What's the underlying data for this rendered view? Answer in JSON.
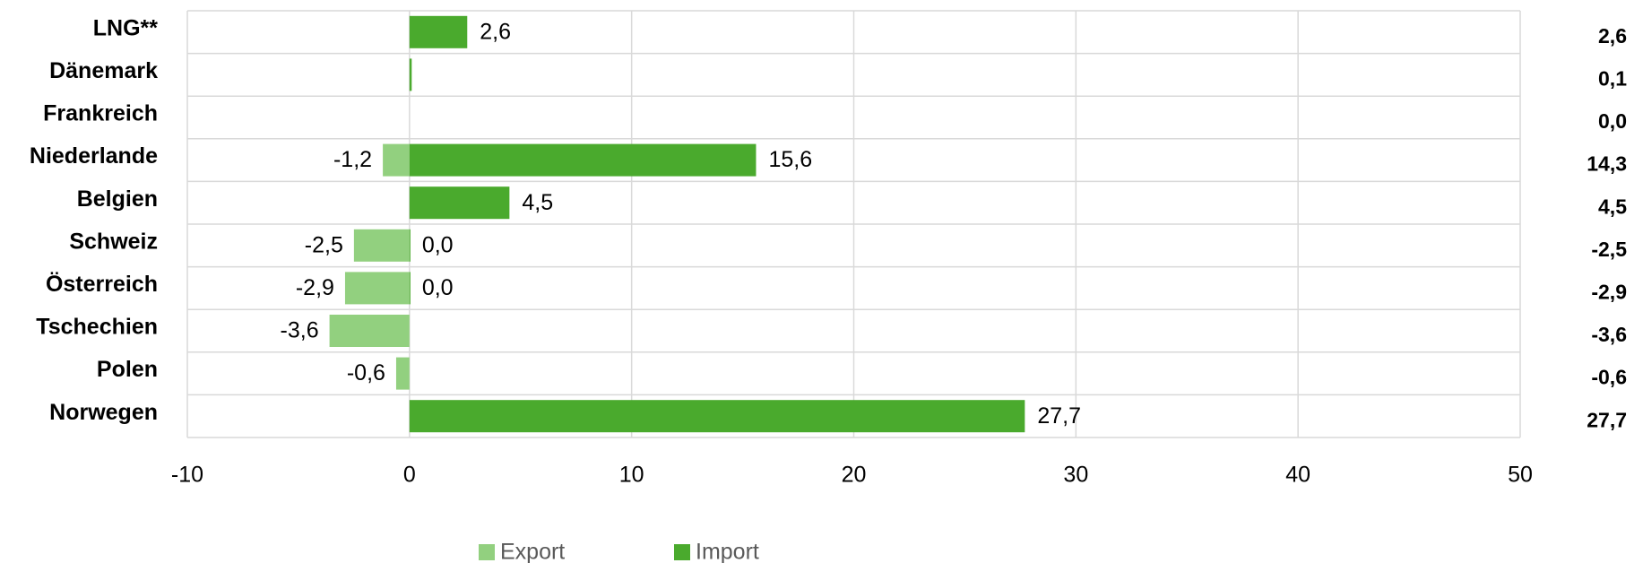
{
  "chart_data": {
    "type": "hbar",
    "categories": [
      "LNG**",
      "Dänemark",
      "Frankreich",
      "Niederlande",
      "Belgien",
      "Schweiz",
      "Österreich",
      "Tschechien",
      "Polen",
      "Norwegen"
    ],
    "series": [
      {
        "name": "Export",
        "color": "#92d07f",
        "values": [
          null,
          null,
          null,
          -1.2,
          null,
          -2.5,
          -2.9,
          -3.6,
          -0.6,
          null
        ],
        "value_labels": [
          null,
          null,
          null,
          "-1,2",
          null,
          "-2,5",
          "-2,9",
          "-3,6",
          "-0,6",
          null
        ]
      },
      {
        "name": "Import",
        "color": "#4aaa2d",
        "values": [
          2.6,
          0.1,
          null,
          15.6,
          4.5,
          0.0,
          0.0,
          null,
          null,
          27.7
        ],
        "value_labels": [
          "2,6",
          null,
          null,
          "15,6",
          "4,5",
          "0,0",
          "0,0",
          null,
          null,
          "27,7"
        ]
      }
    ],
    "totals": {
      "values": [
        2.6,
        0.1,
        0.0,
        14.3,
        4.5,
        -2.5,
        -2.9,
        -3.6,
        -0.6,
        27.7
      ],
      "value_labels": [
        "2,6",
        "0,1",
        "0,0",
        "14,3",
        "4,5",
        "-2,5",
        "-2,9",
        "-3,6",
        "-0,6",
        "27,7"
      ]
    },
    "xlim": [
      -10,
      50
    ],
    "xticks": [
      -10,
      0,
      10,
      20,
      30,
      40,
      50
    ],
    "grid": true,
    "legend": "bottom"
  }
}
